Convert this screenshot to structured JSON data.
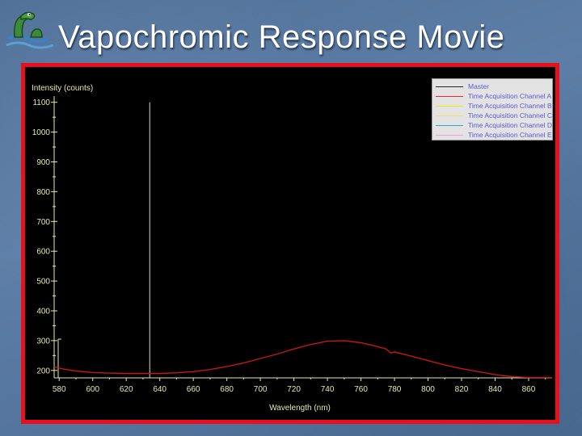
{
  "slide": {
    "title": "Vapochromic Response Movie"
  },
  "icons": {
    "logo": "lake-monster-logo"
  },
  "colors": {
    "frame_border": "#e8101a",
    "plot_background": "#000000",
    "axis": "#e8e8b0",
    "cursor_line": "#d8d8d8",
    "legend_text": "#5a5ad8"
  },
  "legend": {
    "entries": [
      {
        "label": "Master",
        "color": "#222222"
      },
      {
        "label": "Time Acquisition Channel A",
        "color": "#ff2020"
      },
      {
        "label": "Time Acquisition Channel B",
        "color": "#e8e800"
      },
      {
        "label": "Time Acquisition Channel C",
        "color": "#f0e060"
      },
      {
        "label": "Time Acquisition Channel D",
        "color": "#3aa0d0"
      },
      {
        "label": "Time Acquisition Channel E",
        "color": "#ff9ad0"
      }
    ]
  },
  "chart_data": {
    "type": "line",
    "title": "",
    "xlabel": "Wavelength (nm)",
    "ylabel": "Intensity (counts)",
    "xlim": [
      577,
      874
    ],
    "ylim": [
      175,
      1110
    ],
    "xticks": [
      580,
      600,
      620,
      640,
      660,
      680,
      700,
      720,
      740,
      760,
      780,
      800,
      820,
      840,
      860
    ],
    "yticks": [
      200,
      300,
      400,
      500,
      600,
      700,
      800,
      900,
      1000,
      1100
    ],
    "grid": false,
    "legend_position": "top-right",
    "cursor_x": 634,
    "series": [
      {
        "name": "Time Acquisition Channel A",
        "color": "#c41818",
        "x": [
          577,
          582,
          590,
          600,
          610,
          620,
          630,
          640,
          650,
          660,
          670,
          680,
          690,
          700,
          710,
          720,
          730,
          740,
          750,
          760,
          770,
          775,
          778,
          780,
          790,
          800,
          810,
          820,
          830,
          840,
          850,
          860,
          870,
          874
        ],
        "y": [
          212,
          205,
          198,
          193,
          191,
          190,
          190,
          190,
          192,
          196,
          203,
          213,
          225,
          240,
          255,
          272,
          287,
          298,
          300,
          293,
          280,
          272,
          258,
          262,
          248,
          233,
          218,
          206,
          196,
          186,
          179,
          176,
          176,
          176
        ]
      }
    ]
  }
}
